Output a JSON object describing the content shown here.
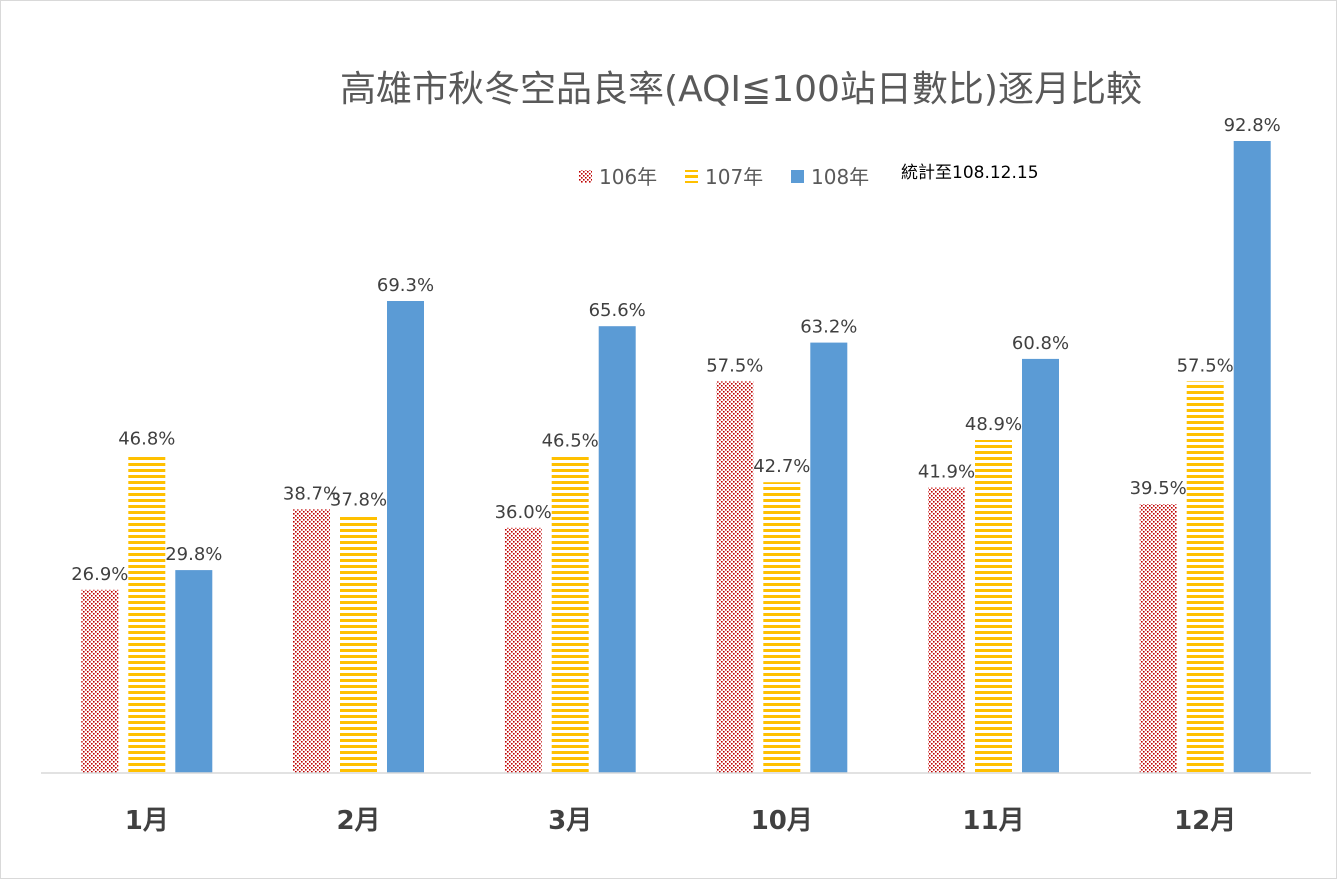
{
  "chart_data": {
    "type": "bar",
    "title": "高雄市秋冬空品良率(AQI≦100站日數比)逐月比較",
    "note": "統計至108.12.15",
    "categories": [
      "1月",
      "2月",
      "3月",
      "10月",
      "11月",
      "12月"
    ],
    "series": [
      {
        "name": "106年",
        "values": [
          26.9,
          38.7,
          36.0,
          57.5,
          41.9,
          39.5
        ],
        "labels": [
          "26.9%",
          "38.7%",
          "36.0%",
          "57.5%",
          "41.9%",
          "39.5%"
        ],
        "color": "#c00000",
        "pattern": "dotted-diagonal"
      },
      {
        "name": "107年",
        "values": [
          46.8,
          37.8,
          46.5,
          42.7,
          48.9,
          57.5
        ],
        "labels": [
          "46.8%",
          "37.8%",
          "46.5%",
          "42.7%",
          "48.9%",
          "57.5%"
        ],
        "color": "#ffc000",
        "pattern": "horizontal-stripes"
      },
      {
        "name": "108年",
        "values": [
          29.8,
          69.3,
          65.6,
          63.2,
          60.8,
          92.8
        ],
        "labels": [
          "29.8%",
          "69.3%",
          "65.6%",
          "63.2%",
          "60.8%",
          "92.8%"
        ],
        "color": "#5b9bd5",
        "pattern": "solid"
      }
    ],
    "ylim": [
      0,
      100
    ],
    "xlabel": "",
    "ylabel": "",
    "grid": false,
    "legend": "top-center"
  }
}
